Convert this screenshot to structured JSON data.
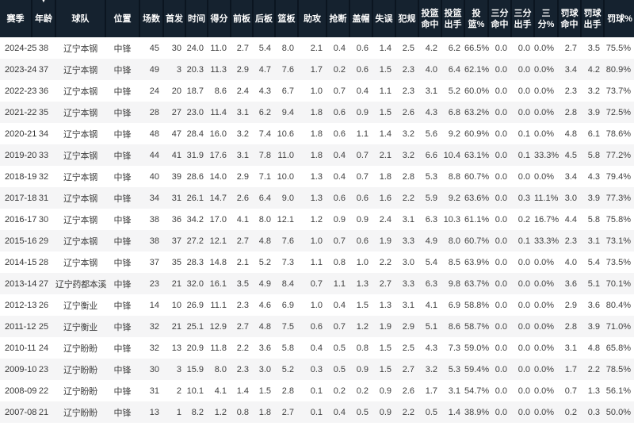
{
  "header": {
    "sort_icon": "▼"
  },
  "table": {
    "columns": [
      {
        "key": "season",
        "label": "赛季"
      },
      {
        "key": "age",
        "label": "年龄"
      },
      {
        "key": "team",
        "label": "球队"
      },
      {
        "key": "position",
        "label": "位置"
      },
      {
        "key": "games",
        "label": "场数"
      },
      {
        "key": "starts",
        "label": "首发"
      },
      {
        "key": "minutes",
        "label": "时间"
      },
      {
        "key": "points",
        "label": "得分"
      },
      {
        "key": "off-rebounds",
        "label": "前板"
      },
      {
        "key": "def-rebounds",
        "label": "后板"
      },
      {
        "key": "rebounds",
        "label": "篮板"
      },
      {
        "key": "assists",
        "label": "助攻"
      },
      {
        "key": "steals",
        "label": "抢断"
      },
      {
        "key": "blocks",
        "label": "盖帽"
      },
      {
        "key": "turnovers",
        "label": "失误"
      },
      {
        "key": "fouls",
        "label": "犯规"
      },
      {
        "key": "fg-made",
        "label": "投篮命中"
      },
      {
        "key": "fg-attempts",
        "label": "投篮出手"
      },
      {
        "key": "fg-pct",
        "label": "投篮%"
      },
      {
        "key": "three-made",
        "label": "三分命中"
      },
      {
        "key": "three-attempts",
        "label": "三分出手"
      },
      {
        "key": "three-pct",
        "label": "三分%"
      },
      {
        "key": "ft-made",
        "label": "罚球命中"
      },
      {
        "key": "ft-attempts",
        "label": "罚球出手"
      },
      {
        "key": "ft-pct",
        "label": "罚球%"
      }
    ],
    "rows": [
      [
        "2024-25",
        "38",
        "辽宁本钢",
        "中锋",
        "45",
        "30",
        "24.0",
        "11.0",
        "2.7",
        "5.4",
        "8.0",
        "2.1",
        "0.4",
        "0.6",
        "1.4",
        "2.5",
        "4.2",
        "6.2",
        "66.5%",
        "0.0",
        "0.0",
        "0.0%",
        "2.7",
        "3.5",
        "75.5%"
      ],
      [
        "2023-24",
        "37",
        "辽宁本钢",
        "中锋",
        "49",
        "3",
        "20.3",
        "11.3",
        "2.9",
        "4.7",
        "7.6",
        "1.7",
        "0.2",
        "0.6",
        "1.5",
        "2.3",
        "4.0",
        "6.4",
        "62.1%",
        "0.0",
        "0.0",
        "0.0%",
        "3.4",
        "4.2",
        "80.9%"
      ],
      [
        "2022-23",
        "36",
        "辽宁本钢",
        "中锋",
        "24",
        "20",
        "18.7",
        "8.6",
        "2.4",
        "4.3",
        "6.7",
        "1.0",
        "0.7",
        "0.4",
        "1.1",
        "2.3",
        "3.1",
        "5.2",
        "60.0%",
        "0.0",
        "0.0",
        "0.0%",
        "2.3",
        "3.2",
        "73.7%"
      ],
      [
        "2021-22",
        "35",
        "辽宁本钢",
        "中锋",
        "28",
        "27",
        "23.0",
        "11.4",
        "3.1",
        "6.2",
        "9.4",
        "1.8",
        "0.6",
        "0.9",
        "1.5",
        "2.6",
        "4.3",
        "6.8",
        "63.2%",
        "0.0",
        "0.0",
        "0.0%",
        "2.8",
        "3.9",
        "72.5%"
      ],
      [
        "2020-21",
        "34",
        "辽宁本钢",
        "中锋",
        "48",
        "47",
        "28.4",
        "16.0",
        "3.2",
        "7.4",
        "10.6",
        "1.8",
        "0.6",
        "1.1",
        "1.4",
        "3.2",
        "5.6",
        "9.2",
        "60.9%",
        "0.0",
        "0.1",
        "0.0%",
        "4.8",
        "6.1",
        "78.6%"
      ],
      [
        "2019-20",
        "33",
        "辽宁本钢",
        "中锋",
        "44",
        "41",
        "31.9",
        "17.6",
        "3.1",
        "7.8",
        "11.0",
        "1.8",
        "0.4",
        "0.7",
        "2.1",
        "3.2",
        "6.6",
        "10.4",
        "63.1%",
        "0.0",
        "0.1",
        "33.3%",
        "4.5",
        "5.8",
        "77.2%"
      ],
      [
        "2018-19",
        "32",
        "辽宁本钢",
        "中锋",
        "40",
        "39",
        "28.6",
        "14.0",
        "2.9",
        "7.1",
        "10.0",
        "1.3",
        "0.4",
        "0.7",
        "1.8",
        "2.8",
        "5.3",
        "8.8",
        "60.7%",
        "0.0",
        "0.0",
        "0.0%",
        "3.4",
        "4.3",
        "79.4%"
      ],
      [
        "2017-18",
        "31",
        "辽宁本钢",
        "中锋",
        "34",
        "31",
        "26.1",
        "14.7",
        "2.6",
        "6.4",
        "9.0",
        "1.3",
        "0.6",
        "0.6",
        "1.6",
        "2.2",
        "5.9",
        "9.2",
        "63.6%",
        "0.0",
        "0.3",
        "11.1%",
        "3.0",
        "3.9",
        "77.3%"
      ],
      [
        "2016-17",
        "30",
        "辽宁本钢",
        "中锋",
        "38",
        "36",
        "34.2",
        "17.0",
        "4.1",
        "8.0",
        "12.1",
        "1.2",
        "0.9",
        "0.9",
        "2.4",
        "3.1",
        "6.3",
        "10.3",
        "61.1%",
        "0.0",
        "0.2",
        "16.7%",
        "4.4",
        "5.8",
        "75.8%"
      ],
      [
        "2015-16",
        "29",
        "辽宁本钢",
        "中锋",
        "38",
        "37",
        "27.2",
        "12.1",
        "2.7",
        "4.8",
        "7.6",
        "1.0",
        "0.7",
        "0.6",
        "1.9",
        "3.3",
        "4.9",
        "8.0",
        "60.7%",
        "0.0",
        "0.1",
        "33.3%",
        "2.3",
        "3.1",
        "73.1%"
      ],
      [
        "2014-15",
        "28",
        "辽宁本钢",
        "中锋",
        "37",
        "35",
        "28.3",
        "14.8",
        "2.1",
        "5.2",
        "7.3",
        "1.1",
        "0.8",
        "1.0",
        "2.2",
        "3.0",
        "5.4",
        "8.5",
        "63.9%",
        "0.0",
        "0.0",
        "0.0%",
        "4.0",
        "5.4",
        "73.5%"
      ],
      [
        "2013-14",
        "27",
        "辽宁药都本溪",
        "中锋",
        "23",
        "21",
        "32.0",
        "16.1",
        "3.5",
        "4.9",
        "8.4",
        "0.7",
        "1.1",
        "1.3",
        "2.7",
        "3.3",
        "6.3",
        "9.8",
        "63.7%",
        "0.0",
        "0.0",
        "0.0%",
        "3.6",
        "5.1",
        "70.1%"
      ],
      [
        "2012-13",
        "26",
        "辽宁衡业",
        "中锋",
        "14",
        "10",
        "26.9",
        "11.1",
        "2.3",
        "4.6",
        "6.9",
        "1.0",
        "0.4",
        "1.5",
        "1.3",
        "3.1",
        "4.1",
        "6.9",
        "58.8%",
        "0.0",
        "0.0",
        "0.0%",
        "2.9",
        "3.6",
        "80.4%"
      ],
      [
        "2011-12",
        "25",
        "辽宁衡业",
        "中锋",
        "32",
        "21",
        "25.1",
        "12.9",
        "2.7",
        "4.8",
        "7.5",
        "0.6",
        "0.7",
        "1.2",
        "1.9",
        "2.9",
        "5.1",
        "8.6",
        "58.7%",
        "0.0",
        "0.0",
        "0.0%",
        "2.8",
        "3.9",
        "71.0%"
      ],
      [
        "2010-11",
        "24",
        "辽宁盼盼",
        "中锋",
        "32",
        "13",
        "20.9",
        "11.8",
        "2.2",
        "3.6",
        "5.8",
        "0.4",
        "0.5",
        "0.8",
        "1.5",
        "2.5",
        "4.3",
        "7.3",
        "59.0%",
        "0.0",
        "0.0",
        "0.0%",
        "3.1",
        "4.8",
        "65.8%"
      ],
      [
        "2009-10",
        "23",
        "辽宁盼盼",
        "中锋",
        "30",
        "3",
        "15.9",
        "8.0",
        "2.3",
        "3.0",
        "5.2",
        "0.3",
        "0.5",
        "0.9",
        "1.5",
        "2.7",
        "3.2",
        "5.3",
        "59.4%",
        "0.0",
        "0.0",
        "0.0%",
        "1.7",
        "2.2",
        "78.5%"
      ],
      [
        "2008-09",
        "22",
        "辽宁盼盼",
        "中锋",
        "31",
        "2",
        "10.1",
        "4.1",
        "1.4",
        "1.5",
        "2.8",
        "0.1",
        "0.2",
        "0.2",
        "0.9",
        "2.6",
        "1.7",
        "3.1",
        "54.7%",
        "0.0",
        "0.0",
        "0.0%",
        "0.7",
        "1.3",
        "56.1%"
      ],
      [
        "2007-08",
        "21",
        "辽宁盼盼",
        "中锋",
        "13",
        "1",
        "8.2",
        "1.2",
        "0.8",
        "1.8",
        "2.7",
        "0.1",
        "0.4",
        "0.5",
        "0.9",
        "2.2",
        "0.5",
        "1.4",
        "38.9%",
        "0.0",
        "0.0",
        "0.0%",
        "0.2",
        "0.3",
        "50.0%"
      ]
    ]
  }
}
